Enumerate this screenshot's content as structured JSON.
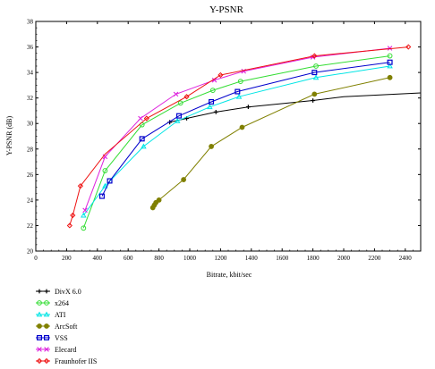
{
  "chart_data": {
    "type": "line",
    "title": "Y-PSNR",
    "xlabel": "Bitrate, kbit/sec",
    "ylabel": "Y-PSNR (dB)",
    "xlim": [
      0,
      2500
    ],
    "ylim": [
      20,
      38
    ],
    "xticks": [
      0,
      200,
      400,
      600,
      800,
      1000,
      1200,
      1400,
      1600,
      1800,
      2000,
      2200,
      2400
    ],
    "yticks": [
      20,
      22,
      24,
      26,
      28,
      30,
      32,
      34,
      36,
      38
    ],
    "grid": false,
    "legend_position": "bottom-left",
    "series": [
      {
        "name": "DivX 6.0",
        "color": "#000000",
        "marker": "plus",
        "points": [
          [
            870,
            30.1
          ],
          [
            980,
            30.4
          ],
          [
            1170,
            30.9
          ],
          [
            1380,
            31.3
          ],
          [
            1800,
            31.8
          ],
          [
            2000,
            32.1
          ],
          [
            2500,
            32.4
          ]
        ],
        "marker_points": [
          [
            870,
            30.1
          ],
          [
            980,
            30.4
          ],
          [
            1170,
            30.9
          ],
          [
            1380,
            31.3
          ],
          [
            1800,
            31.8
          ]
        ]
      },
      {
        "name": "x264",
        "color": "#33dd33",
        "marker": "circle",
        "points": [
          [
            310,
            21.8
          ],
          [
            450,
            26.3
          ],
          [
            690,
            29.9
          ],
          [
            940,
            31.6
          ],
          [
            1150,
            32.6
          ],
          [
            1330,
            33.3
          ],
          [
            1820,
            34.5
          ],
          [
            2300,
            35.3
          ]
        ],
        "marker_points": [
          [
            310,
            21.8
          ],
          [
            450,
            26.3
          ],
          [
            690,
            29.9
          ],
          [
            940,
            31.6
          ],
          [
            1150,
            32.6
          ],
          [
            1330,
            33.3
          ],
          [
            1820,
            34.5
          ],
          [
            2300,
            35.3
          ]
        ]
      },
      {
        "name": "ATI",
        "color": "#00e5e5",
        "marker": "triangle",
        "points": [
          [
            310,
            22.8
          ],
          [
            450,
            25.1
          ],
          [
            700,
            28.2
          ],
          [
            920,
            30.2
          ],
          [
            1130,
            31.3
          ],
          [
            1320,
            32.1
          ],
          [
            1820,
            33.6
          ],
          [
            2300,
            34.5
          ]
        ],
        "marker_points": [
          [
            310,
            22.8
          ],
          [
            450,
            25.1
          ],
          [
            700,
            28.2
          ],
          [
            920,
            30.2
          ],
          [
            1130,
            31.3
          ],
          [
            1320,
            32.1
          ],
          [
            1820,
            33.6
          ],
          [
            2300,
            34.5
          ]
        ]
      },
      {
        "name": "ArcSoft",
        "color": "#808000",
        "marker": "dot",
        "points": [
          [
            760,
            23.4
          ],
          [
            780,
            23.8
          ],
          [
            800,
            24.0
          ],
          [
            960,
            25.6
          ],
          [
            1140,
            28.2
          ],
          [
            1340,
            29.7
          ],
          [
            1810,
            32.3
          ],
          [
            2300,
            33.6
          ]
        ],
        "marker_points": [
          [
            760,
            23.4
          ],
          [
            770,
            23.6
          ],
          [
            780,
            23.8
          ],
          [
            800,
            24.0
          ],
          [
            960,
            25.6
          ],
          [
            1140,
            28.2
          ],
          [
            1340,
            29.7
          ],
          [
            1810,
            32.3
          ],
          [
            2300,
            33.6
          ]
        ]
      },
      {
        "name": "VSS",
        "color": "#0000cc",
        "marker": "square",
        "points": [
          [
            430,
            24.3
          ],
          [
            480,
            25.5
          ],
          [
            690,
            28.8
          ],
          [
            930,
            30.6
          ],
          [
            1140,
            31.7
          ],
          [
            1310,
            32.5
          ],
          [
            1810,
            34.0
          ],
          [
            2300,
            34.8
          ]
        ],
        "marker_points": [
          [
            430,
            24.3
          ],
          [
            480,
            25.5
          ],
          [
            690,
            28.8
          ],
          [
            930,
            30.6
          ],
          [
            1140,
            31.7
          ],
          [
            1310,
            32.5
          ],
          [
            1810,
            34.0
          ],
          [
            2300,
            34.8
          ]
        ]
      },
      {
        "name": "Elecard",
        "color": "#dd22dd",
        "marker": "cross",
        "points": [
          [
            320,
            23.2
          ],
          [
            450,
            27.4
          ],
          [
            680,
            30.4
          ],
          [
            910,
            32.3
          ],
          [
            1160,
            33.4
          ],
          [
            1350,
            34.1
          ],
          [
            1800,
            35.2
          ],
          [
            2300,
            35.9
          ]
        ],
        "marker_points": [
          [
            320,
            23.2
          ],
          [
            450,
            27.4
          ],
          [
            680,
            30.4
          ],
          [
            910,
            32.3
          ],
          [
            1160,
            33.4
          ],
          [
            1350,
            34.1
          ],
          [
            1800,
            35.2
          ],
          [
            2300,
            35.9
          ]
        ]
      },
      {
        "name": "Fraunhofer IIS",
        "color": "#ee1111",
        "marker": "diamond",
        "points": [
          [
            220,
            22.0
          ],
          [
            240,
            22.8
          ],
          [
            290,
            25.1
          ],
          [
            450,
            27.6
          ],
          [
            720,
            30.4
          ],
          [
            980,
            32.1
          ],
          [
            1200,
            33.8
          ],
          [
            1810,
            35.3
          ],
          [
            2420,
            36.0
          ]
        ],
        "marker_points": [
          [
            220,
            22.0
          ],
          [
            240,
            22.8
          ],
          [
            290,
            25.1
          ],
          [
            720,
            30.4
          ],
          [
            980,
            32.1
          ],
          [
            1200,
            33.8
          ],
          [
            1810,
            35.3
          ],
          [
            2420,
            36.0
          ]
        ]
      }
    ]
  }
}
